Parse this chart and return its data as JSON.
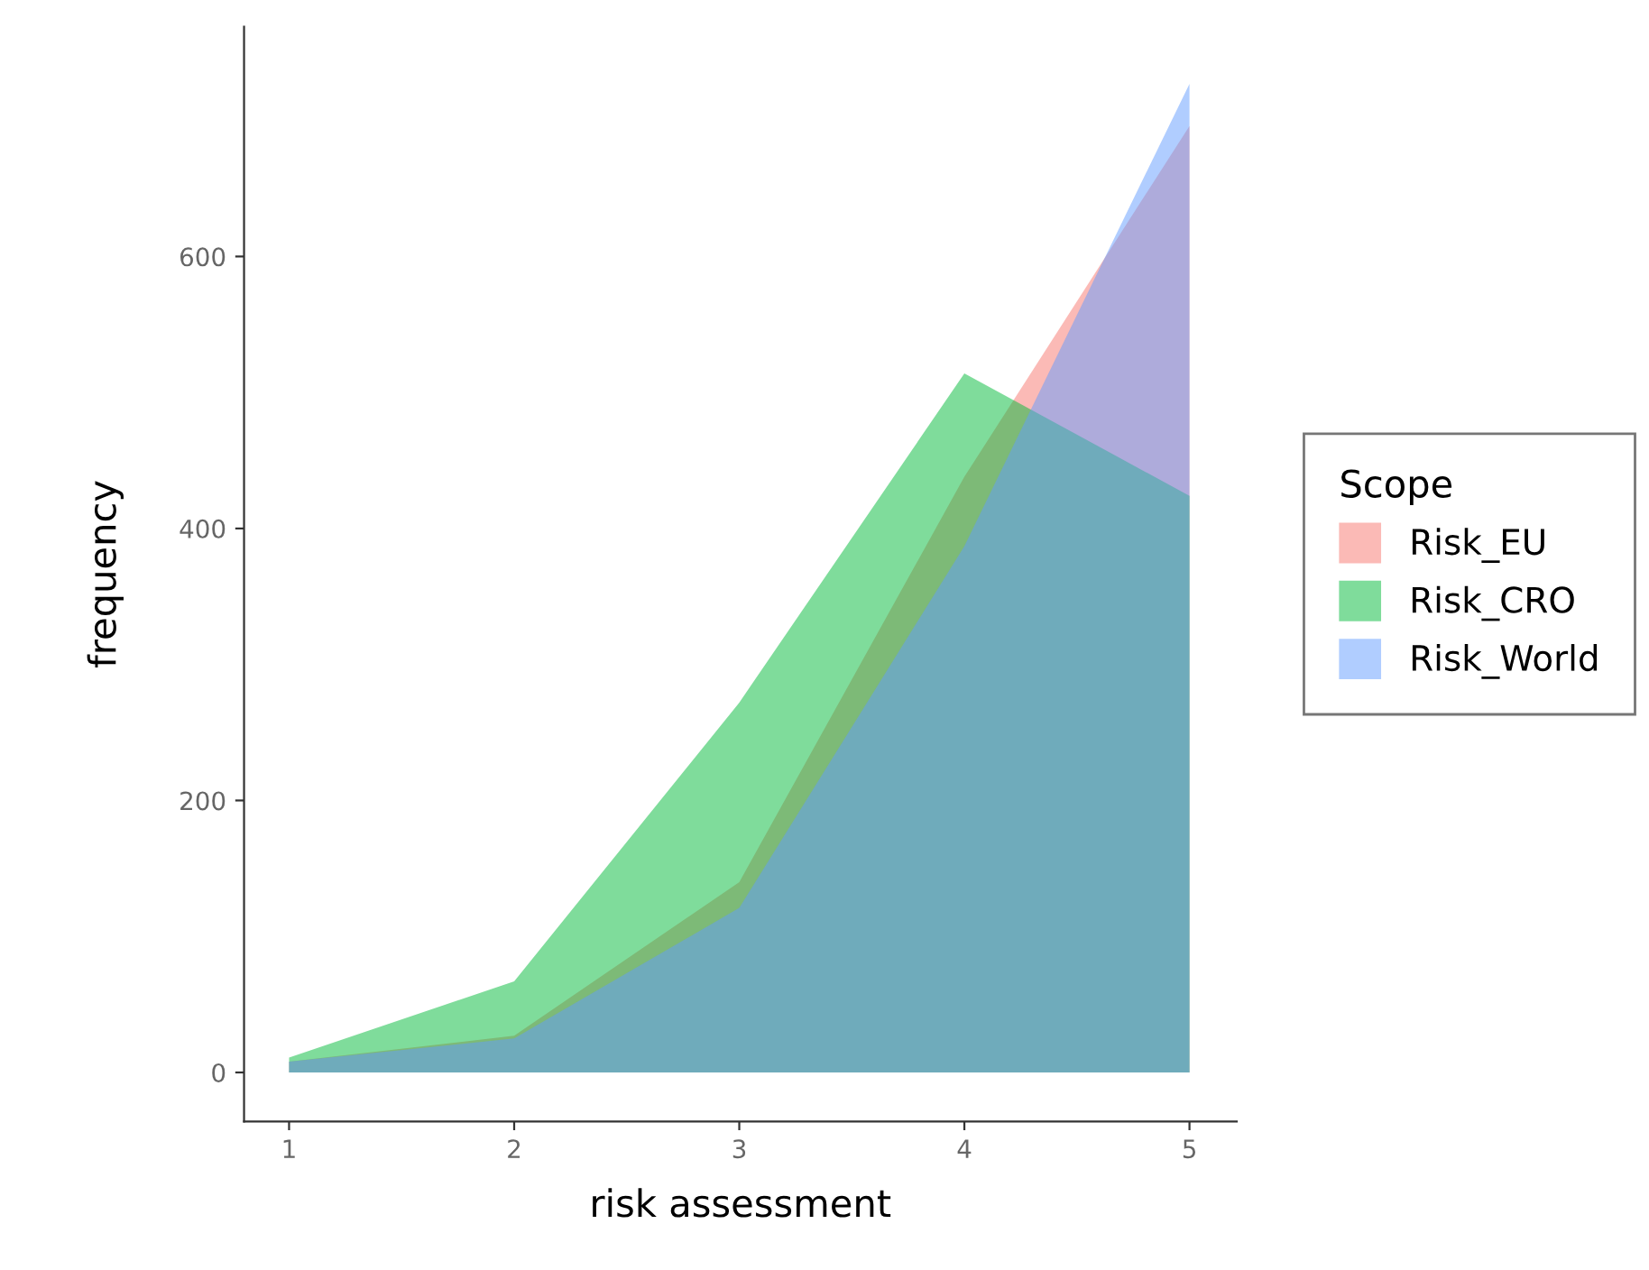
{
  "chart_data": {
    "type": "area",
    "xlabel": "risk assessment",
    "ylabel": "frequency",
    "legend_title": "Scope",
    "legend": "right",
    "x": [
      1,
      2,
      3,
      4,
      5
    ],
    "series": [
      {
        "name": "Risk_EU",
        "color": "#f8766d",
        "values": [
          8,
          27,
          140,
          438,
          696
        ]
      },
      {
        "name": "Risk_CRO",
        "color": "#00ba38",
        "values": [
          11,
          67,
          272,
          514,
          424
        ]
      },
      {
        "name": "Risk_World",
        "color": "#619cff",
        "values": [
          8,
          25,
          121,
          387,
          727
        ]
      }
    ],
    "xlim": [
      0.8,
      5.21
    ],
    "ylim": [
      -36,
      769
    ],
    "xticks": [
      1,
      2,
      3,
      4,
      5
    ],
    "yticks": [
      0,
      200,
      400,
      600
    ],
    "grid": false
  }
}
